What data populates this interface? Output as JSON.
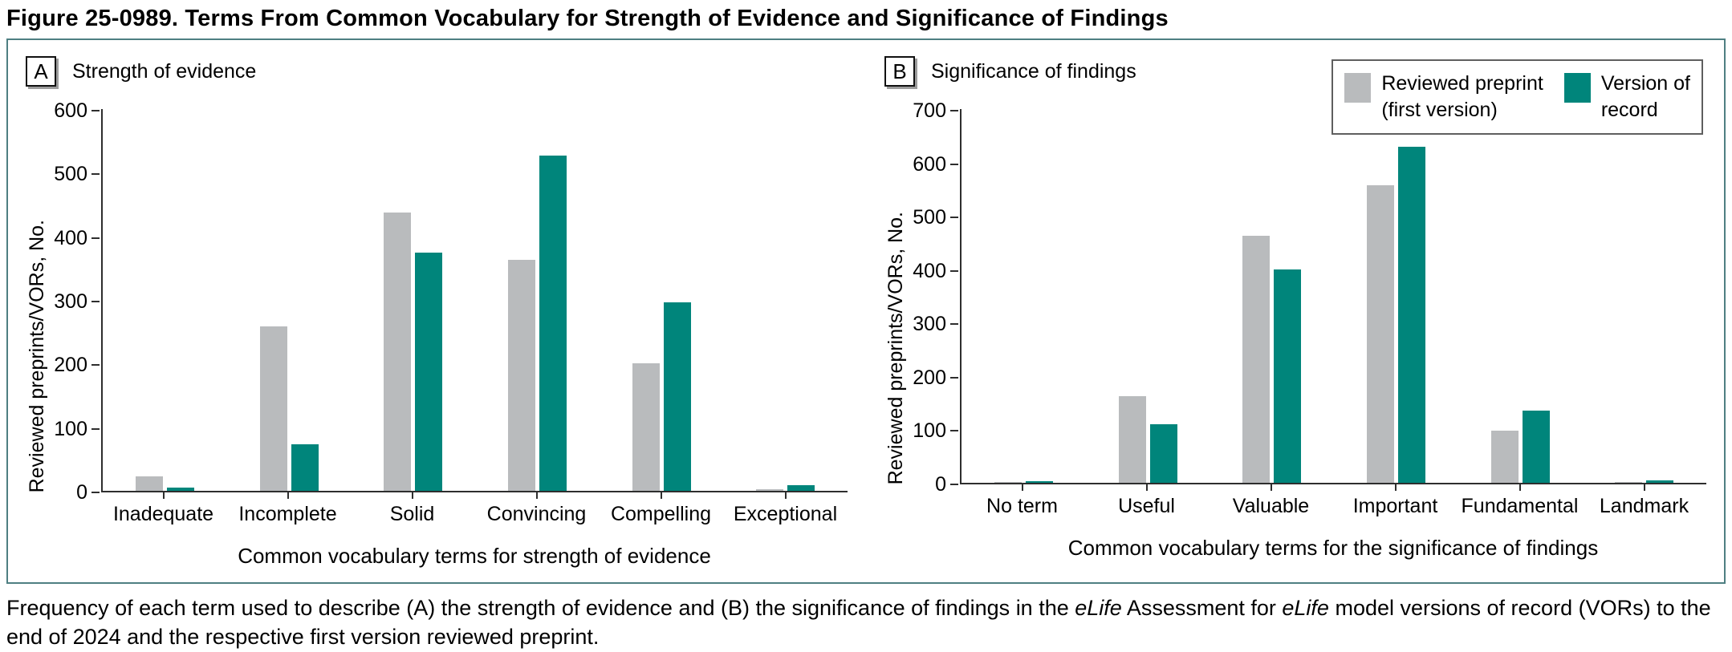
{
  "figure": {
    "title": "Figure 25-0989. Terms From Common Vocabulary for Strength of Evidence and Significance of Findings"
  },
  "colors": {
    "panel_border": "#4e7f82",
    "axis": "#2e2e2e",
    "bar_gray": "#b9bbbd",
    "bar_green": "#00857b",
    "legend_border": "#5f5f5f"
  },
  "legend": {
    "items": [
      {
        "line1": "Reviewed preprint",
        "line2": "(first version)",
        "color": "#b9bbbd"
      },
      {
        "line1": "Version of",
        "line2": "record",
        "color": "#00857b"
      }
    ]
  },
  "chart_data": [
    {
      "type": "bar",
      "panel_label": "A",
      "title": "Strength of evidence",
      "categories": [
        "Inadequate",
        "Incomplete",
        "Solid",
        "Convincing",
        "Compelling",
        "Exceptional"
      ],
      "series": [
        {
          "name": "Reviewed preprint (first version)",
          "color": "#b9bbbd",
          "values": [
            23,
            258,
            438,
            363,
            200,
            2
          ]
        },
        {
          "name": "Version of record",
          "color": "#00857b",
          "values": [
            5,
            73,
            374,
            527,
            296,
            9
          ]
        }
      ],
      "xlabel": "Common vocabulary terms for strength of evidence",
      "ylabel": "Reviewed preprints/VORs, No.",
      "ylim": [
        0,
        600
      ],
      "ytick_step": 100,
      "grid": false,
      "legend_position": "none"
    },
    {
      "type": "bar",
      "panel_label": "B",
      "title": "Significance of findings",
      "categories": [
        "No term",
        "Useful",
        "Valuable",
        "Important",
        "Fundamental",
        "Landmark"
      ],
      "series": [
        {
          "name": "Reviewed preprint (first version)",
          "color": "#b9bbbd",
          "values": [
            1,
            163,
            462,
            558,
            97,
            1
          ]
        },
        {
          "name": "Version of record",
          "color": "#00857b",
          "values": [
            3,
            110,
            400,
            630,
            135,
            5
          ]
        }
      ],
      "xlabel": "Common vocabulary terms for the significance of findings",
      "ylabel": "Reviewed preprints/VORs, No.",
      "ylim": [
        0,
        700
      ],
      "ytick_step": 100,
      "grid": false,
      "legend_position": "top-right"
    }
  ],
  "caption": {
    "part1": "Frequency of each term used to describe (A) the strength of evidence and (B) the significance of findings in the ",
    "italic1": "eLife",
    "part2": " Assessment for ",
    "italic2": "eLife",
    "part3": " model versions of record (VORs) to the end of 2024 and the respective first version reviewed preprint."
  }
}
